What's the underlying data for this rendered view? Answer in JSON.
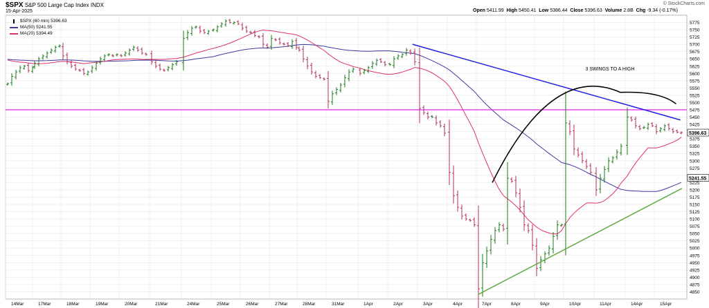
{
  "header": {
    "symbol": "$SPX",
    "name": "S&P 500 Large Cap Index",
    "exchange": "INDX",
    "date": "15-Apr-2025",
    "brand": "© StockCharts.com",
    "open_label": "Open",
    "open": "5411.99",
    "high_label": "High",
    "high": "5450.41",
    "low_label": "Low",
    "low": "5386.44",
    "close_label": "Close",
    "close": "5396.63",
    "volume_label": "Volume",
    "volume": "2.8B",
    "chg_label": "Chg",
    "chg": "-9.34 (-0.17%)"
  },
  "legend": [
    {
      "label": "$SPX (60 min) 5396.63",
      "color": "#000000",
      "marker": "ohlc"
    },
    {
      "label": "MA(50) 5241.55",
      "color": "#3a3aa0",
      "marker": "line"
    },
    {
      "label": "MA(20) 5394.49",
      "color": "#e0306a",
      "marker": "line"
    }
  ],
  "chart_data": {
    "type": "ohlc",
    "title": "$SPX (60 min)",
    "ylim": [
      4825,
      5800
    ],
    "yticks": [
      4850,
      4875,
      4900,
      4925,
      4950,
      4975,
      5000,
      5025,
      5050,
      5075,
      5100,
      5125,
      5150,
      5175,
      5200,
      5225,
      5250,
      5275,
      5300,
      5325,
      5350,
      5375,
      5400,
      5425,
      5450,
      5475,
      5500,
      5525,
      5550,
      5575,
      5600,
      5625,
      5650,
      5675,
      5700,
      5725,
      5750,
      5775
    ],
    "x_labels": [
      "14Mar",
      "17Mar",
      "18Mar",
      "19Mar",
      "20Mar",
      "21Mar",
      "24Mar",
      "25Mar",
      "26Mar",
      "27Mar",
      "28Mar",
      "31Mar",
      "1Apr",
      "2Apr",
      "3Apr",
      "4Apr",
      "7Apr",
      "8Apr",
      "9Apr",
      "10Apr",
      "11Apr",
      "14Apr",
      "15Apr"
    ],
    "bars_per_day": 7,
    "closes": [
      5565,
      5590,
      5605,
      5620,
      5625,
      5610,
      5620,
      5635,
      5650,
      5660,
      5670,
      5680,
      5690,
      5695,
      5660,
      5640,
      5625,
      5615,
      5610,
      5600,
      5605,
      5620,
      5635,
      5650,
      5660,
      5665,
      5660,
      5665,
      5660,
      5670,
      5680,
      5690,
      5680,
      5670,
      5665,
      5640,
      5625,
      5615,
      5610,
      5620,
      5630,
      5640,
      5720,
      5740,
      5755,
      5760,
      5745,
      5740,
      5745,
      5750,
      5760,
      5770,
      5780,
      5775,
      5775,
      5770,
      5755,
      5745,
      5740,
      5730,
      5725,
      5700,
      5690,
      5720,
      5715,
      5705,
      5700,
      5695,
      5710,
      5690,
      5680,
      5650,
      5625,
      5605,
      5590,
      5585,
      5580,
      5505,
      5530,
      5545,
      5560,
      5585,
      5605,
      5615,
      5600,
      5610,
      5620,
      5635,
      5645,
      5640,
      5630,
      5630,
      5650,
      5660,
      5665,
      5680,
      5670,
      5640,
      5480,
      5465,
      5450,
      5450,
      5430,
      5420,
      5395,
      5260,
      5180,
      5140,
      5110,
      5100,
      5095,
      5080,
      4860,
      4950,
      4990,
      5030,
      5060,
      5080,
      5065,
      5240,
      5230,
      5190,
      5140,
      5080,
      5060,
      5010,
      4930,
      4960,
      4980,
      5000,
      5040,
      5080,
      5080,
      5430,
      5400,
      5340,
      5320,
      5300,
      5280,
      5260,
      5200,
      5240,
      5270,
      5300,
      5310,
      5330,
      5350,
      5450,
      5440,
      5420,
      5410,
      5415,
      5425,
      5420,
      5400,
      5410,
      5420,
      5410,
      5400,
      5398,
      5397
    ],
    "series": [
      {
        "name": "$SPX (60 min)",
        "last": 5396.63,
        "color": "#000000"
      },
      {
        "name": "MA(50)",
        "last": 5241.55,
        "color": "#3a3aa0"
      },
      {
        "name": "MA(20)",
        "last": 5394.49,
        "color": "#e0306a"
      }
    ],
    "hline": {
      "value": 5475,
      "color": "#e020e0"
    },
    "trendlines": [
      {
        "from": {
          "day": 13.85,
          "price": 5700
        },
        "to": {
          "day": 22.9,
          "price": 5440
        },
        "color": "#2020e0"
      },
      {
        "from": {
          "day": 16.05,
          "price": 4840
        },
        "to": {
          "day": 22.95,
          "price": 5205
        },
        "color": "#66aa44"
      }
    ],
    "annotation": {
      "text": "3 SWINGS TO A HIGH",
      "day": 19.75,
      "price": 5610
    },
    "price_tags": [
      {
        "value": "5396.63",
        "price": 5396.63
      },
      {
        "value": "5241.55",
        "price": 5241.55
      }
    ]
  }
}
